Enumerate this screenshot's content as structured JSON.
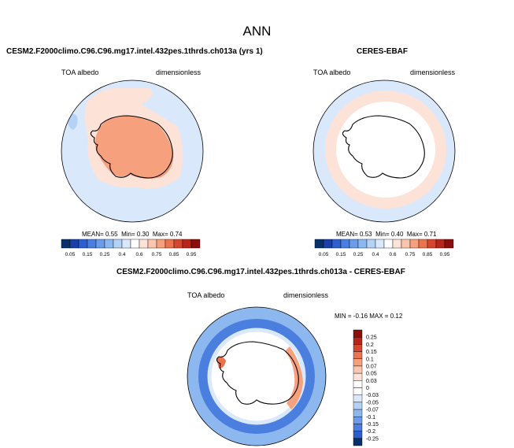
{
  "title": "ANN",
  "panels": [
    {
      "title": "CESM2.F2000climo.C96.C96.mg17.intel.432pes.1thrds.ch013a (yrs 1)",
      "left_label": "TOA albedo",
      "right_label": "dimensionless",
      "stats": {
        "mean_label": "MEAN=",
        "mean": "0.55",
        "min_label": "Min=",
        "min": "0.30",
        "max_label": "Max=",
        "max": "0.74"
      }
    },
    {
      "title": "CERES-EBAF",
      "left_label": "TOA albedo",
      "right_label": "dimensionless",
      "stats": {
        "mean_label": "MEAN=",
        "mean": "0.53",
        "min_label": "Min=",
        "min": "0.40",
        "max_label": "Max=",
        "max": "0.71"
      }
    },
    {
      "title": "CESM2.F2000climo.C96.C96.mg17.intel.432pes.1thrds.ch013a - CERES-EBAF",
      "left_label": "TOA albedo",
      "right_label": "dimensionless",
      "stats_text": "MIN = -0.16 MAX =  0.12"
    }
  ],
  "chart_data": [
    {
      "type": "heatmap",
      "projection": "south-polar-stereographic",
      "variable": "TOA albedo",
      "units": "dimensionless",
      "mean": 0.55,
      "min": 0.3,
      "max": 0.74,
      "colorbar": {
        "orientation": "horizontal",
        "ticks": [
          "0.05",
          "0.15",
          "0.25",
          "0.4",
          "0.6",
          "0.75",
          "0.85",
          "0.95"
        ],
        "levels": [
          0.05,
          0.1,
          0.15,
          0.2,
          0.25,
          0.3,
          0.4,
          0.5,
          0.6,
          0.7,
          0.75,
          0.8,
          0.85,
          0.9,
          0.95
        ],
        "colors": [
          "#08306b",
          "#1a3fa6",
          "#2e5fd1",
          "#4a7fe0",
          "#6a9ce8",
          "#8db8ef",
          "#b4d2f5",
          "#d9e8fa",
          "#ffffff",
          "#fde3d7",
          "#fbc6ad",
          "#f6a07d",
          "#ec7350",
          "#d6472f",
          "#b8251a",
          "#8a0e0b"
        ]
      },
      "regions": {
        "ocean": 0.35,
        "sea_ice_band": 0.57,
        "antarctica": 0.72
      }
    },
    {
      "type": "heatmap",
      "projection": "south-polar-stereographic",
      "variable": "TOA albedo",
      "units": "dimensionless",
      "mean": 0.53,
      "min": 0.4,
      "max": 0.71,
      "colorbar": {
        "orientation": "horizontal",
        "ticks": [
          "0.05",
          "0.15",
          "0.25",
          "0.4",
          "0.6",
          "0.75",
          "0.85",
          "0.95"
        ],
        "levels": [
          0.05,
          0.1,
          0.15,
          0.2,
          0.25,
          0.3,
          0.4,
          0.5,
          0.6,
          0.7,
          0.75,
          0.8,
          0.85,
          0.9,
          0.95
        ],
        "colors": [
          "#08306b",
          "#1a3fa6",
          "#2e5fd1",
          "#4a7fe0",
          "#6a9ce8",
          "#8db8ef",
          "#b4d2f5",
          "#d9e8fa",
          "#ffffff",
          "#fde3d7",
          "#fbc6ad",
          "#f6a07d",
          "#ec7350",
          "#d6472f",
          "#b8251a",
          "#8a0e0b"
        ]
      },
      "regions": {
        "ocean": 0.42,
        "ring_band": 0.6,
        "antarctica": 0.5
      }
    },
    {
      "type": "heatmap",
      "projection": "south-polar-stereographic",
      "variable": "TOA albedo",
      "units": "dimensionless",
      "min": -0.16,
      "max": 0.12,
      "colorbar": {
        "orientation": "vertical",
        "ticks": [
          "0.25",
          "0.2",
          "0.15",
          "0.1",
          "0.07",
          "0.05",
          "0.03",
          "0",
          "-0.03",
          "-0.05",
          "-0.07",
          "-0.1",
          "-0.15",
          "-0.2",
          "-0.25"
        ],
        "colors": [
          "#8a0e0b",
          "#b8251a",
          "#d6472f",
          "#ec7350",
          "#f6a07d",
          "#fbc6ad",
          "#fde3d7",
          "#ffffff",
          "#ffffff",
          "#d9e8fa",
          "#b4d2f5",
          "#8db8ef",
          "#6a9ce8",
          "#4a7fe0",
          "#2e5fd1",
          "#08306b"
        ]
      },
      "regions": {
        "outer_ocean": -0.04,
        "mid_ring": -0.1,
        "inner_ring": 0.0,
        "antarctica": 0.0,
        "east_coast": 0.07
      }
    }
  ]
}
